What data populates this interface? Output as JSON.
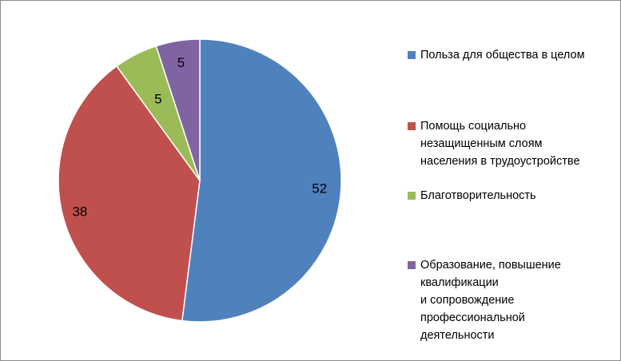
{
  "chart_data": {
    "type": "pie",
    "title": "",
    "start_angle_deg": 0,
    "direction": "clockwise",
    "legend_position": "right",
    "slices": [
      {
        "label": "Польза для общества в целом",
        "value": 52,
        "color": "#4F81BD"
      },
      {
        "label": "Помощь социально\nнезащищенным слоям\nнаселения в трудоустройстве",
        "value": 38,
        "color": "#C0504D"
      },
      {
        "label": "Благотворительность",
        "value": 5,
        "color": "#9BBB59"
      },
      {
        "label": "Образование, повышение\nквалификации\nи сопровождение\nпрофессиональной\nдеятельности",
        "value": 5,
        "color": "#8064A2"
      }
    ],
    "data_labels": [
      "52",
      "38",
      "5",
      "5"
    ]
  }
}
